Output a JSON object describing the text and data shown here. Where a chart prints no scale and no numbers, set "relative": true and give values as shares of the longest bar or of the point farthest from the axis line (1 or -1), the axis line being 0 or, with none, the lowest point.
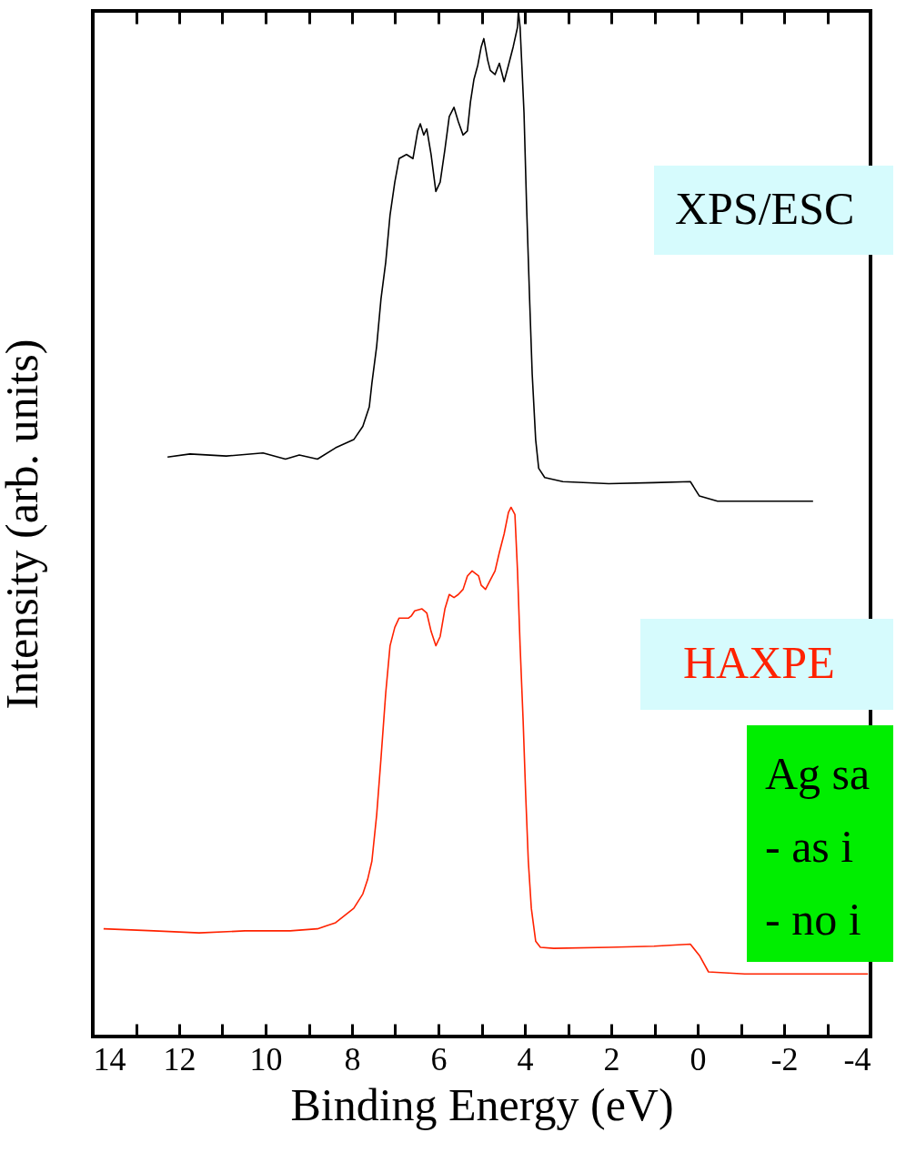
{
  "chart_data": {
    "type": "line",
    "relative": true,
    "xlabel": "Binding Energy (eV)",
    "ylabel": "Intensity (arb. units)",
    "xlim": [
      14,
      -4
    ],
    "xticks": [
      14,
      {
        "value": 13,
        "label": null
      },
      12,
      {
        "value": 11,
        "label": null
      },
      10,
      {
        "value": 9,
        "label": null
      },
      8,
      {
        "value": 7,
        "label": null
      },
      6,
      {
        "value": 5,
        "label": null
      },
      4,
      {
        "value": 3,
        "label": null
      },
      2,
      {
        "value": 1,
        "label": null
      },
      0,
      {
        "value": -1,
        "label": null
      },
      -2,
      {
        "value": -3,
        "label": null
      },
      -4
    ],
    "annotations": [
      "Ag sa",
      "- as i",
      "- no i"
    ],
    "series": [
      {
        "name": "XPS/ESC",
        "color": "#000000",
        "x": [
          12.27,
          11.75,
          10.91,
          10.06,
          9.54,
          9.22,
          8.8,
          8.38,
          7.96,
          7.75,
          7.6,
          7.54,
          7.43,
          7.33,
          7.22,
          7.12,
          7.01,
          6.91,
          6.74,
          6.59,
          6.48,
          6.42,
          6.34,
          6.27,
          6.17,
          6.06,
          5.96,
          5.85,
          5.75,
          5.64,
          5.54,
          5.43,
          5.33,
          5.26,
          5.18,
          5.09,
          5.01,
          4.95,
          4.86,
          4.8,
          4.69,
          4.59,
          4.48,
          4.38,
          4.27,
          4.17,
          4.15,
          4.11,
          4.02,
          3.96,
          3.89,
          3.83,
          3.75,
          3.68,
          3.54,
          3.12,
          2.06,
          1.01,
          0.17,
          -0.04,
          -0.46,
          -1.31,
          -2.67
        ],
        "values": [
          0.565,
          0.568,
          0.566,
          0.569,
          0.563,
          0.567,
          0.563,
          0.574,
          0.582,
          0.595,
          0.614,
          0.637,
          0.673,
          0.719,
          0.755,
          0.801,
          0.833,
          0.856,
          0.86,
          0.856,
          0.883,
          0.89,
          0.879,
          0.885,
          0.86,
          0.824,
          0.833,
          0.865,
          0.897,
          0.906,
          0.892,
          0.879,
          0.883,
          0.911,
          0.933,
          0.947,
          0.965,
          0.973,
          0.952,
          0.942,
          0.938,
          0.949,
          0.931,
          0.947,
          0.965,
          0.984,
          1,
          0.984,
          0.901,
          0.81,
          0.719,
          0.646,
          0.582,
          0.554,
          0.545,
          0.541,
          0.539,
          0.54,
          0.541,
          0.527,
          0.522,
          0.522,
          0.522
        ]
      },
      {
        "name": "HAXPE",
        "color": "#ff2200",
        "x": [
          13.75,
          12.59,
          11.54,
          10.48,
          9.43,
          8.8,
          8.38,
          7.96,
          7.75,
          7.64,
          7.54,
          7.43,
          7.33,
          7.22,
          7.12,
          7.01,
          6.91,
          6.8,
          6.69,
          6.63,
          6.55,
          6.38,
          6.27,
          6.17,
          6.06,
          5.96,
          5.85,
          5.75,
          5.64,
          5.54,
          5.43,
          5.33,
          5.22,
          5.16,
          5.07,
          5.01,
          4.91,
          4.8,
          4.69,
          4.59,
          4.48,
          4.38,
          4.32,
          4.23,
          4.17,
          4.11,
          4.04,
          3.98,
          3.92,
          3.85,
          3.75,
          3.64,
          3.33,
          2.06,
          1.01,
          0.17,
          -0.04,
          -0.25,
          -1.09,
          -3.94
        ],
        "values": [
          0.105,
          0.103,
          0.101,
          0.103,
          0.103,
          0.105,
          0.111,
          0.125,
          0.139,
          0.153,
          0.171,
          0.216,
          0.271,
          0.335,
          0.381,
          0.399,
          0.408,
          0.408,
          0.408,
          0.41,
          0.415,
          0.417,
          0.413,
          0.395,
          0.381,
          0.39,
          0.417,
          0.431,
          0.428,
          0.431,
          0.436,
          0.449,
          0.454,
          0.452,
          0.449,
          0.44,
          0.436,
          0.445,
          0.454,
          0.472,
          0.49,
          0.511,
          0.516,
          0.509,
          0.454,
          0.381,
          0.308,
          0.235,
          0.171,
          0.125,
          0.093,
          0.087,
          0.086,
          0.087,
          0.088,
          0.09,
          0.079,
          0.063,
          0.061,
          0.061
        ]
      }
    ]
  }
}
